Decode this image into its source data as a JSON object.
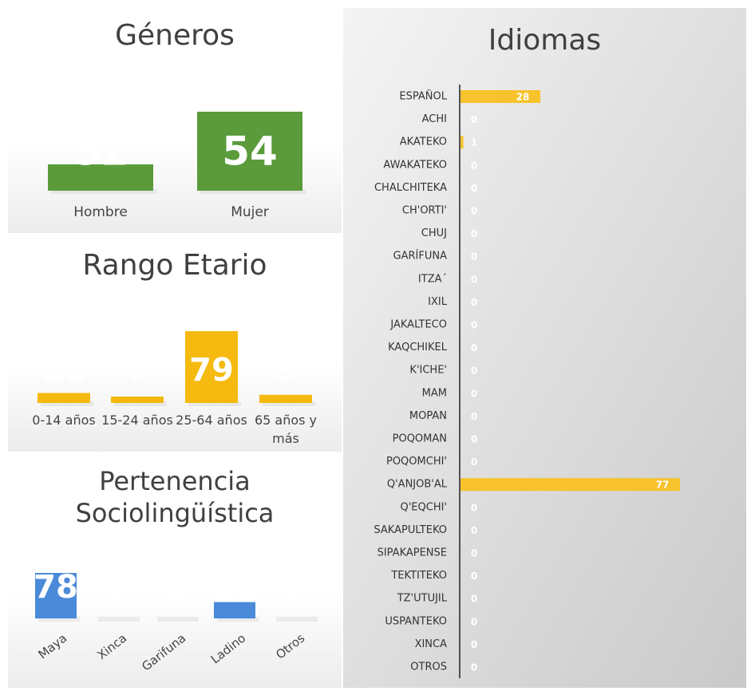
{
  "chart_data": [
    {
      "type": "bar",
      "title": "Géneros",
      "categories": [
        "Hombre",
        "Mujer"
      ],
      "values": [
        52,
        54
      ],
      "color": "#5b9b3b",
      "ylim": [
        51,
        54
      ]
    },
    {
      "type": "bar",
      "title": "Rango Etario",
      "categories": [
        "0-14 años",
        "15-24 años",
        "25-64 años",
        "65 años y más"
      ],
      "values": [
        11,
        7,
        79,
        9
      ],
      "color": "#f5b90f",
      "ylim": [
        0,
        79
      ]
    },
    {
      "type": "bar",
      "title": "Pertenencia Sociolingüística",
      "categories": [
        "Maya",
        "Xinca",
        "Garifuna",
        "Ladino",
        "Otros"
      ],
      "values": [
        78,
        0,
        0,
        28,
        0
      ],
      "color": "#4a8ad8",
      "ylim": [
        0,
        78
      ]
    },
    {
      "type": "barh",
      "title": "Idiomas",
      "categories": [
        "ESPAÑOL",
        "ACHI",
        "AKATEKO",
        "AWAKATEKO",
        "CHALCHITEKA",
        "CH'ORTI'",
        "CHUJ",
        "GARÍFUNA",
        "ITZA´",
        "IXIL",
        "JAKALTECO",
        "KAQCHIKEL",
        "K'ICHE'",
        "MAM",
        "MOPAN",
        "POQOMAN",
        "POQOMCHI'",
        "Q'ANJOB'AL",
        "Q'EQCHI'",
        "SAKAPULTEKO",
        "SIPAKAPENSE",
        "TEKTITEKO",
        "TZ'UTUJIL",
        "USPANTEKO",
        "XINCA",
        "OTROS"
      ],
      "values": [
        28,
        0,
        1,
        0,
        0,
        0,
        0,
        0,
        0,
        0,
        0,
        0,
        0,
        0,
        0,
        0,
        0,
        77,
        0,
        0,
        0,
        0,
        0,
        0,
        0,
        0
      ],
      "color": "#f7c22c",
      "xlim": [
        0,
        77
      ]
    }
  ]
}
